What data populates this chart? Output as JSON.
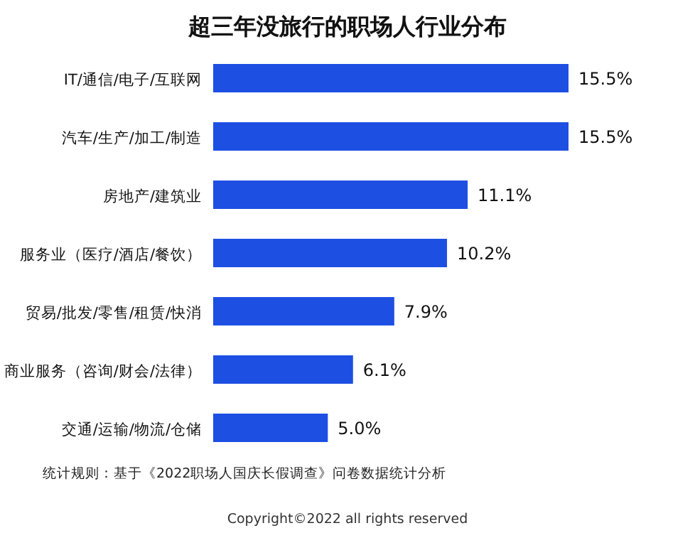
{
  "chart_data": {
    "type": "bar",
    "orientation": "horizontal",
    "title": "超三年没旅行的职场人行业分布",
    "categories": [
      "IT/通信/电子/互联网",
      "汽车/生产/加工/制造",
      "房地产/建筑业",
      "服务业（医疗/酒店/餐饮）",
      "贸易/批发/零售/租赁/快消",
      "商业服务（咨询/财会/法律）",
      "交通/运输/物流/仓储"
    ],
    "series": [
      {
        "color": "#1d4fe3",
        "values": [
          15.5,
          15.5,
          11.1,
          10.2,
          7.9,
          6.1,
          5.0
        ],
        "value_labels": [
          "15.5%",
          "15.5%",
          "11.1%",
          "10.2%",
          "7.9%",
          "6.1%",
          "5.0%"
        ]
      }
    ],
    "annotations": [
      "统计规则：基于《2022职场人国庆长假调查》问卷数据统计分析",
      "Copyright©2022 all rights reserved"
    ]
  }
}
